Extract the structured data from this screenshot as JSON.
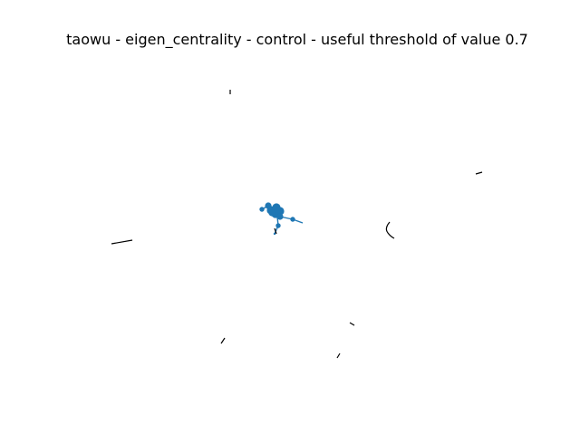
{
  "figure": {
    "title": "taowu - eigen_centrality - control - useful threshold of value 0.7"
  },
  "colors": {
    "node": "#1f77b4",
    "edge": "#000000",
    "background": "#ffffff"
  },
  "graph": {
    "main_cluster": {
      "nodes": [
        {
          "id": "n1",
          "size": "large"
        },
        {
          "id": "n2",
          "size": "large"
        },
        {
          "id": "n3",
          "size": "large"
        },
        {
          "id": "n4",
          "size": "large"
        },
        {
          "id": "n5",
          "size": "medium"
        },
        {
          "id": "n6",
          "size": "medium"
        },
        {
          "id": "n7",
          "size": "medium"
        },
        {
          "id": "n8",
          "size": "small"
        },
        {
          "id": "n9",
          "size": "small"
        },
        {
          "id": "n10",
          "size": "small"
        },
        {
          "id": "n11",
          "size": "tiny"
        }
      ],
      "edges": [
        [
          "n1",
          "n2"
        ],
        [
          "n1",
          "n3"
        ],
        [
          "n2",
          "n3"
        ],
        [
          "n2",
          "n4"
        ],
        [
          "n3",
          "n4"
        ],
        [
          "n1",
          "n5"
        ],
        [
          "n4",
          "n6"
        ],
        [
          "n3",
          "n6"
        ],
        [
          "n4",
          "n7"
        ],
        [
          "n7",
          "n10"
        ],
        [
          "n2",
          "n8"
        ],
        [
          "n8",
          "n11"
        ],
        [
          "n5",
          "n9"
        ]
      ]
    },
    "isolated_edge_count": 8
  }
}
